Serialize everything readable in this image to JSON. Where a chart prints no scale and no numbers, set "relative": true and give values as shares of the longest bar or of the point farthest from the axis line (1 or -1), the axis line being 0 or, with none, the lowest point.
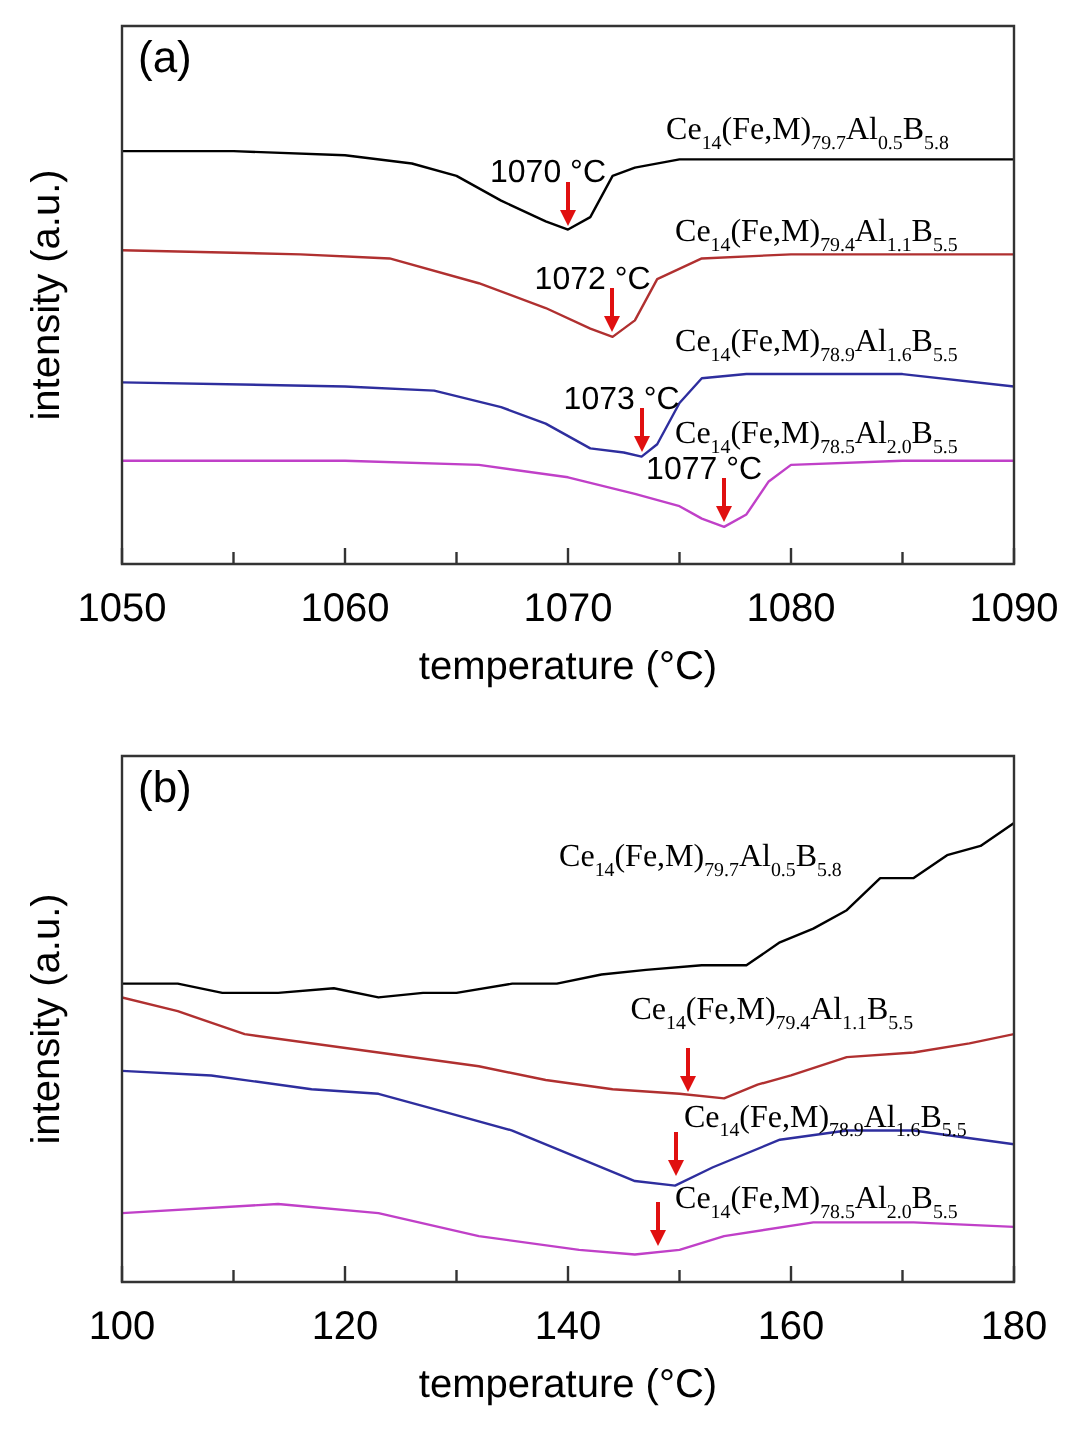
{
  "chart_data": [
    {
      "type": "line",
      "title": "(a)",
      "xlabel": "temperature (°C)",
      "ylabel": "intensity (a.u.)",
      "relative": true,
      "xlim": [
        1050,
        1090
      ],
      "xticks": [
        1050,
        {
          "value": 1055,
          "label": null
        },
        1060,
        {
          "value": 1065,
          "label": null
        },
        1070,
        {
          "value": 1075,
          "label": null
        },
        1080,
        {
          "value": 1085,
          "label": null
        },
        1090
      ],
      "annotations": [
        {
          "text": "1070 °C",
          "x": 1070,
          "y": 0.81
        },
        {
          "text": "1072 °C",
          "x": 1072,
          "y": 0.55
        },
        {
          "text": "1073 °C",
          "x": 1073.3,
          "y": 0.26
        },
        {
          "text": "1077 °C",
          "x": 1077,
          "y": 0.09
        }
      ],
      "series": [
        {
          "name": "Ce$_{14}$(Fe,M)$_{79.7}$Al$_{0.5}$B$_{5.8}$",
          "color": "#000000",
          "x": [
            1050,
            1055,
            1060,
            1063,
            1065,
            1067,
            1069,
            1070,
            1071,
            1072,
            1073,
            1075,
            1080,
            1090
          ],
          "values": [
            1.0,
            1.0,
            0.99,
            0.97,
            0.94,
            0.88,
            0.83,
            0.81,
            0.84,
            0.94,
            0.96,
            0.98,
            0.98,
            0.98
          ]
        },
        {
          "name": "Ce$_{14}$(Fe,M)$_{79.4}$Al$_{1.1}$B$_{5.5}$",
          "color": "#b03030",
          "x": [
            1050,
            1058,
            1062,
            1066,
            1069,
            1071,
            1072,
            1073,
            1074,
            1076,
            1080,
            1090
          ],
          "values": [
            0.76,
            0.75,
            0.74,
            0.68,
            0.62,
            0.57,
            0.55,
            0.59,
            0.69,
            0.74,
            0.75,
            0.75
          ]
        },
        {
          "name": "Ce$_{14}$(Fe,M)$_{78.9}$Al$_{1.6}$B$_{5.5}$",
          "color": "#2e2e9e",
          "x": [
            1050,
            1060,
            1064,
            1067,
            1069,
            1071,
            1072.5,
            1073.3,
            1074,
            1075,
            1076,
            1078,
            1085,
            1090
          ],
          "values": [
            0.44,
            0.43,
            0.42,
            0.38,
            0.34,
            0.28,
            0.27,
            0.26,
            0.29,
            0.39,
            0.45,
            0.46,
            0.46,
            0.43
          ]
        },
        {
          "name": "Ce$_{14}$(Fe,M)$_{78.5}$Al$_{2.0}$B$_{5.5}$",
          "color": "#c040c8",
          "x": [
            1050,
            1060,
            1066,
            1070,
            1073,
            1075,
            1076,
            1077,
            1078,
            1079,
            1080,
            1085,
            1090
          ],
          "values": [
            0.25,
            0.25,
            0.24,
            0.21,
            0.17,
            0.14,
            0.11,
            0.09,
            0.12,
            0.2,
            0.24,
            0.25,
            0.25
          ]
        }
      ]
    },
    {
      "type": "line",
      "title": "(b)",
      "xlabel": "temperature (°C)",
      "ylabel": "intensity (a.u.)",
      "relative": true,
      "xlim": [
        100,
        180
      ],
      "xticks": [
        100,
        {
          "value": 110,
          "label": null
        },
        120,
        {
          "value": 130,
          "label": null
        },
        140,
        {
          "value": 150,
          "label": null
        },
        160,
        {
          "value": 170,
          "label": null
        },
        180
      ],
      "series": [
        {
          "name": "Ce$_{14}$(Fe,M)$_{79.7}$Al$_{0.5}$B$_{5.8}$",
          "color": "#000000",
          "x": [
            100,
            105,
            109,
            114,
            119,
            123,
            127,
            130,
            135,
            139,
            143,
            147,
            152,
            156,
            159,
            162,
            165,
            168,
            171,
            174,
            177,
            180
          ],
          "values": [
            0.65,
            0.65,
            0.63,
            0.63,
            0.64,
            0.62,
            0.63,
            0.63,
            0.65,
            0.65,
            0.67,
            0.68,
            0.69,
            0.69,
            0.74,
            0.77,
            0.81,
            0.88,
            0.88,
            0.93,
            0.95,
            1.0
          ]
        },
        {
          "name": "Ce$_{14}$(Fe,M)$_{79.4}$Al$_{1.1}$B$_{5.5}$",
          "color": "#b03030",
          "x": [
            100,
            105,
            111,
            123,
            132,
            138,
            144,
            150,
            154,
            157,
            160,
            165,
            171,
            176,
            180
          ],
          "values": [
            0.62,
            0.59,
            0.54,
            0.5,
            0.47,
            0.44,
            0.42,
            0.41,
            0.4,
            0.43,
            0.45,
            0.49,
            0.5,
            0.52,
            0.54
          ]
        },
        {
          "name": "Ce$_{14}$(Fe,M)$_{78.9}$Al$_{1.6}$B$_{5.5}$",
          "color": "#2e2e9e",
          "x": [
            100,
            108,
            117,
            123,
            129,
            135,
            141,
            146,
            149.6,
            153,
            159,
            165,
            171,
            180
          ],
          "values": [
            0.46,
            0.45,
            0.42,
            0.41,
            0.37,
            0.33,
            0.27,
            0.22,
            0.21,
            0.25,
            0.31,
            0.33,
            0.33,
            0.3
          ]
        },
        {
          "name": "Ce$_{14}$(Fe,M)$_{78.5}$Al$_{2.0}$B$_{5.5}$",
          "color": "#c040c8",
          "x": [
            100,
            114,
            123,
            132,
            141,
            146,
            150,
            154,
            162,
            171,
            180
          ],
          "values": [
            0.15,
            0.17,
            0.15,
            0.1,
            0.07,
            0.06,
            0.07,
            0.1,
            0.13,
            0.13,
            0.12
          ]
        }
      ]
    }
  ]
}
